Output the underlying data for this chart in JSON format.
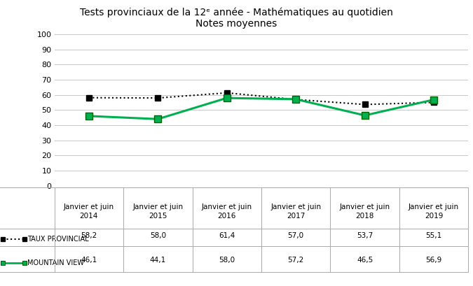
{
  "title_line1": "Tests provinciaux de la 12ᵉ année - Mathématiques au quotidien",
  "title_line2": "Notes moyennes",
  "categories": [
    "Janvier et juin\n2014",
    "Janvier et juin\n2015",
    "Janvier et juin\n2016",
    "Janvier et juin\n2017",
    "Janvier et juin\n2018",
    "Janvier et juin\n2019"
  ],
  "provincial": [
    58.2,
    58.0,
    61.4,
    57.0,
    53.7,
    55.1
  ],
  "mountain_view": [
    46.1,
    44.1,
    58.0,
    57.2,
    46.5,
    56.9
  ],
  "provincial_color": "#000000",
  "mountain_view_color": "#00b050",
  "ylim": [
    0,
    100
  ],
  "yticks": [
    0,
    10,
    20,
    30,
    40,
    50,
    60,
    70,
    80,
    90,
    100
  ],
  "legend_provincial": "■•■ TAUX PROVINCIAL",
  "legend_mv": "■ MOUNTAIN VIEW",
  "table_row1": [
    "58,2",
    "58,0",
    "61,4",
    "57,0",
    "53,7",
    "55,1"
  ],
  "table_row2": [
    "46,1",
    "44,1",
    "58,0",
    "57,2",
    "46,5",
    "56,9"
  ],
  "background_color": "#ffffff",
  "grid_color": "#c8c8c8",
  "table_line_color": "#aaaaaa"
}
